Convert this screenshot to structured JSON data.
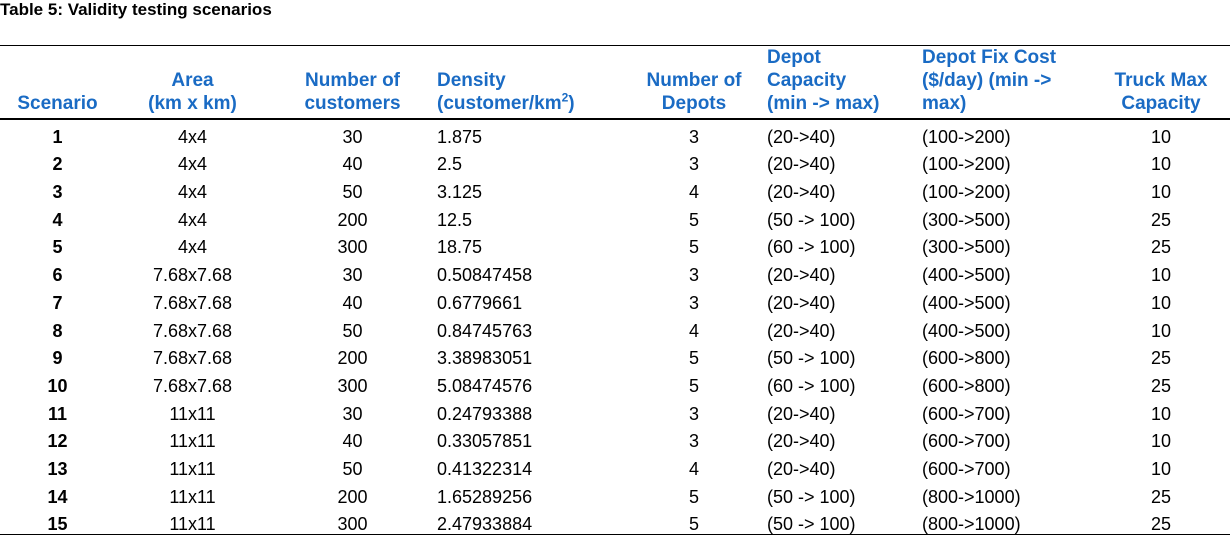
{
  "caption": "Table 5: Validity testing scenarios",
  "table": {
    "headers": {
      "scenario": "Scenario",
      "area_1": "Area",
      "area_2": "(km x km)",
      "customers_1": "Number of",
      "customers_2": "customers",
      "density_1": "Density",
      "density_2a": "(customer/km",
      "density_sup": "2",
      "density_2b": ")",
      "depots_1": "Number of",
      "depots_2": "Depots",
      "capacity_1": "Depot",
      "capacity_2": "Capacity",
      "capacity_3": "(min -> max)",
      "fixcost_1": "Depot Fix Cost",
      "fixcost_2": "($/day) (min ->",
      "fixcost_3": "max)",
      "truck_1": "Truck Max",
      "truck_2": "Capacity"
    },
    "rows": [
      {
        "scenario": "1",
        "area": "4x4",
        "customers": "30",
        "density": "1.875",
        "depots": "3",
        "capacity": "(20->40)",
        "fixcost": "(100->200)",
        "truck": "10"
      },
      {
        "scenario": "2",
        "area": "4x4",
        "customers": "40",
        "density": "2.5",
        "depots": "3",
        "capacity": "(20->40)",
        "fixcost": "(100->200)",
        "truck": "10"
      },
      {
        "scenario": "3",
        "area": "4x4",
        "customers": "50",
        "density": "3.125",
        "depots": "4",
        "capacity": "(20->40)",
        "fixcost": "(100->200)",
        "truck": "10"
      },
      {
        "scenario": "4",
        "area": "4x4",
        "customers": "200",
        "density": "12.5",
        "depots": "5",
        "capacity": "(50 -> 100)",
        "fixcost": "(300->500)",
        "truck": "25"
      },
      {
        "scenario": "5",
        "area": "4x4",
        "customers": "300",
        "density": "18.75",
        "depots": "5",
        "capacity": "(60 -> 100)",
        "fixcost": "(300->500)",
        "truck": "25"
      },
      {
        "scenario": "6",
        "area": "7.68x7.68",
        "customers": "30",
        "density": "0.50847458",
        "depots": "3",
        "capacity": "(20->40)",
        "fixcost": "(400->500)",
        "truck": "10"
      },
      {
        "scenario": "7",
        "area": "7.68x7.68",
        "customers": "40",
        "density": "0.6779661",
        "depots": "3",
        "capacity": "(20->40)",
        "fixcost": "(400->500)",
        "truck": "10"
      },
      {
        "scenario": "8",
        "area": "7.68x7.68",
        "customers": "50",
        "density": "0.84745763",
        "depots": "4",
        "capacity": "(20->40)",
        "fixcost": "(400->500)",
        "truck": "10"
      },
      {
        "scenario": "9",
        "area": "7.68x7.68",
        "customers": "200",
        "density": "3.38983051",
        "depots": "5",
        "capacity": "(50 -> 100)",
        "fixcost": "(600->800)",
        "truck": "25"
      },
      {
        "scenario": "10",
        "area": "7.68x7.68",
        "customers": "300",
        "density": "5.08474576",
        "depots": "5",
        "capacity": "(60 -> 100)",
        "fixcost": "(600->800)",
        "truck": "25"
      },
      {
        "scenario": "11",
        "area": "11x11",
        "customers": "30",
        "density": "0.24793388",
        "depots": "3",
        "capacity": "(20->40)",
        "fixcost": "(600->700)",
        "truck": "10"
      },
      {
        "scenario": "12",
        "area": "11x11",
        "customers": "40",
        "density": "0.33057851",
        "depots": "3",
        "capacity": "(20->40)",
        "fixcost": "(600->700)",
        "truck": "10"
      },
      {
        "scenario": "13",
        "area": "11x11",
        "customers": "50",
        "density": "0.41322314",
        "depots": "4",
        "capacity": "(20->40)",
        "fixcost": "(600->700)",
        "truck": "10"
      },
      {
        "scenario": "14",
        "area": "11x11",
        "customers": "200",
        "density": "1.65289256",
        "depots": "5",
        "capacity": "(50 -> 100)",
        "fixcost": "(800->1000)",
        "truck": "25"
      },
      {
        "scenario": "15",
        "area": "11x11",
        "customers": "300",
        "density": "2.47933884",
        "depots": "5",
        "capacity": "(50 -> 100)",
        "fixcost": "(800->1000)",
        "truck": "25"
      }
    ]
  }
}
